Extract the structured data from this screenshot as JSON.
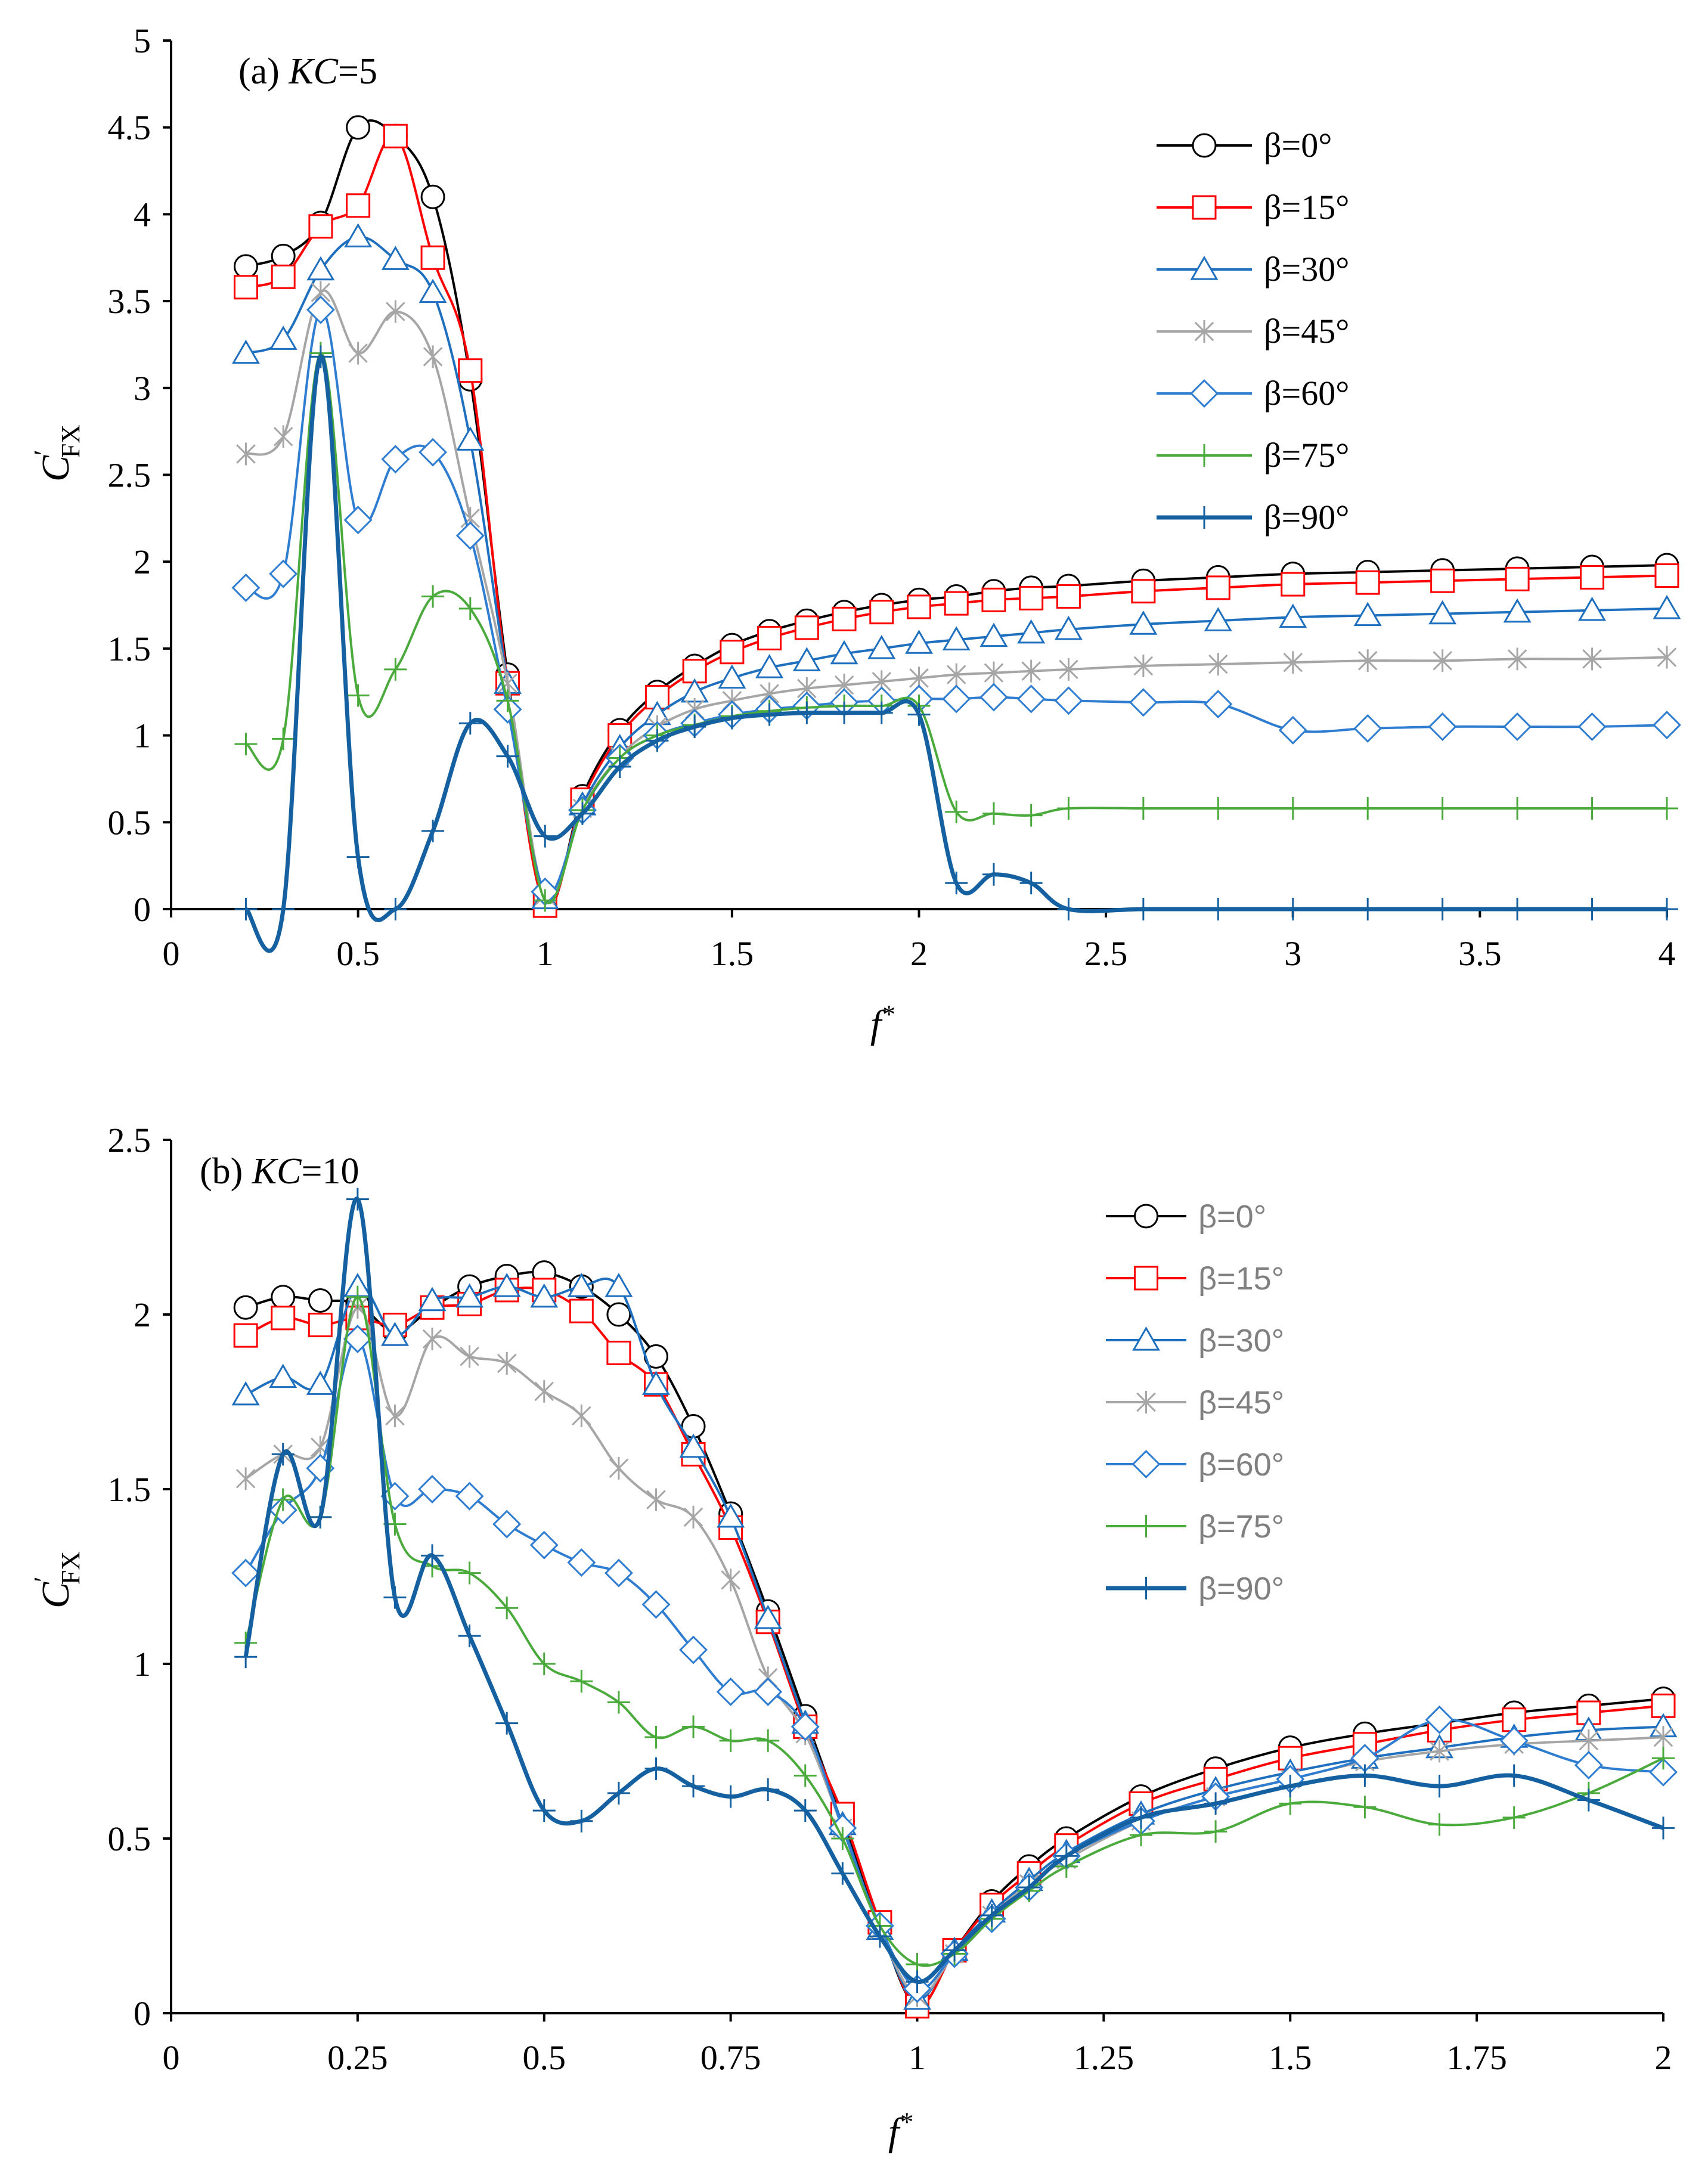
{
  "chart_data": [
    {
      "type": "line",
      "panel": "(a)",
      "title_prefix": "(a) ",
      "title_italic": "KC",
      "title_suffix": "=5",
      "xlabel": "f",
      "xlabel_sup": "*",
      "ylabel": "C",
      "ylabel_sup": "′",
      "ylabel_sub": "FX",
      "xlim": [
        0,
        4
      ],
      "ylim": [
        0,
        5
      ],
      "xticks": [
        0,
        0.5,
        1,
        1.5,
        2,
        2.5,
        3,
        3.5,
        4
      ],
      "xtick_labels": [
        "0",
        "0.5",
        "1",
        "1.5",
        "2",
        "2.5",
        "3",
        "3.5",
        "4"
      ],
      "yticks": [
        0,
        0.5,
        1,
        1.5,
        2,
        2.5,
        3,
        3.5,
        4,
        4.5,
        5
      ],
      "ytick_labels": [
        "0",
        "0.5",
        "1",
        "1.5",
        "2",
        "2.5",
        "3",
        "3.5",
        "4",
        "4.5",
        "5"
      ],
      "legend_position": "top-right",
      "series": [
        {
          "name": "β=0°",
          "color": "#000000",
          "marker": "circle",
          "lw": 4,
          "x": [
            0.2,
            0.3,
            0.4,
            0.5,
            0.6,
            0.7,
            0.8,
            0.9,
            1.0,
            1.1,
            1.2,
            1.3,
            1.4,
            1.5,
            1.6,
            1.7,
            1.8,
            1.9,
            2.0,
            2.1,
            2.2,
            2.3,
            2.4,
            2.6,
            2.8,
            3.0,
            3.2,
            3.4,
            3.6,
            3.8,
            4.0
          ],
          "y": [
            3.7,
            3.76,
            3.95,
            4.5,
            4.45,
            4.1,
            3.05,
            1.35,
            0.02,
            0.65,
            1.03,
            1.25,
            1.4,
            1.52,
            1.6,
            1.66,
            1.71,
            1.75,
            1.78,
            1.8,
            1.83,
            1.85,
            1.86,
            1.89,
            1.91,
            1.93,
            1.94,
            1.95,
            1.96,
            1.97,
            1.98
          ]
        },
        {
          "name": "β=15°",
          "color": "#ff0000",
          "marker": "square",
          "lw": 4,
          "x": [
            0.2,
            0.3,
            0.4,
            0.5,
            0.6,
            0.7,
            0.8,
            0.9,
            1.0,
            1.1,
            1.2,
            1.3,
            1.4,
            1.5,
            1.6,
            1.7,
            1.8,
            1.9,
            2.0,
            2.1,
            2.2,
            2.3,
            2.4,
            2.6,
            2.8,
            3.0,
            3.2,
            3.4,
            3.6,
            3.8,
            4.0
          ],
          "y": [
            3.58,
            3.64,
            3.93,
            4.05,
            4.45,
            3.75,
            3.1,
            1.3,
            0.02,
            0.63,
            1.0,
            1.22,
            1.37,
            1.48,
            1.56,
            1.62,
            1.67,
            1.71,
            1.74,
            1.76,
            1.78,
            1.79,
            1.8,
            1.83,
            1.85,
            1.87,
            1.88,
            1.89,
            1.9,
            1.91,
            1.92
          ]
        },
        {
          "name": "β=30°",
          "color": "#1f6fbf",
          "marker": "triangle",
          "lw": 4,
          "x": [
            0.2,
            0.3,
            0.4,
            0.5,
            0.6,
            0.7,
            0.8,
            0.9,
            1.0,
            1.1,
            1.2,
            1.3,
            1.4,
            1.5,
            1.6,
            1.7,
            1.8,
            1.9,
            2.0,
            2.1,
            2.2,
            2.3,
            2.4,
            2.6,
            2.8,
            3.0,
            3.2,
            3.4,
            3.6,
            3.8,
            4.0
          ],
          "y": [
            3.2,
            3.28,
            3.68,
            3.87,
            3.74,
            3.55,
            2.7,
            1.3,
            0.06,
            0.6,
            0.93,
            1.12,
            1.25,
            1.33,
            1.39,
            1.43,
            1.47,
            1.5,
            1.53,
            1.55,
            1.57,
            1.59,
            1.61,
            1.64,
            1.66,
            1.68,
            1.69,
            1.7,
            1.71,
            1.72,
            1.73
          ]
        },
        {
          "name": "β=45°",
          "color": "#a6a6a6",
          "marker": "asterisk",
          "lw": 4,
          "x": [
            0.2,
            0.3,
            0.4,
            0.5,
            0.6,
            0.7,
            0.8,
            0.9,
            1.0,
            1.1,
            1.2,
            1.3,
            1.4,
            1.5,
            1.6,
            1.7,
            1.8,
            1.9,
            2.0,
            2.1,
            2.2,
            2.3,
            2.4,
            2.6,
            2.8,
            3.0,
            3.2,
            3.4,
            3.6,
            3.8,
            4.0
          ],
          "y": [
            2.62,
            2.72,
            3.55,
            3.2,
            3.44,
            3.18,
            2.25,
            1.3,
            0.08,
            0.58,
            0.88,
            1.05,
            1.15,
            1.2,
            1.24,
            1.27,
            1.29,
            1.31,
            1.33,
            1.35,
            1.36,
            1.37,
            1.38,
            1.4,
            1.41,
            1.42,
            1.43,
            1.43,
            1.44,
            1.44,
            1.45
          ]
        },
        {
          "name": "β=60°",
          "color": "#2e7dd1",
          "marker": "diamond",
          "lw": 4,
          "x": [
            0.2,
            0.3,
            0.4,
            0.5,
            0.6,
            0.7,
            0.8,
            0.9,
            1.0,
            1.1,
            1.2,
            1.3,
            1.4,
            1.5,
            1.6,
            1.7,
            1.8,
            1.9,
            2.0,
            2.1,
            2.2,
            2.3,
            2.4,
            2.6,
            2.8,
            3.0,
            3.2,
            3.4,
            3.6,
            3.8,
            4.0
          ],
          "y": [
            1.85,
            1.93,
            3.45,
            2.24,
            2.59,
            2.63,
            2.15,
            1.15,
            0.1,
            0.57,
            0.87,
            1.0,
            1.07,
            1.12,
            1.15,
            1.17,
            1.19,
            1.2,
            1.21,
            1.21,
            1.22,
            1.21,
            1.2,
            1.19,
            1.18,
            1.03,
            1.04,
            1.05,
            1.05,
            1.05,
            1.06
          ]
        },
        {
          "name": "β=75°",
          "color": "#4aaa3c",
          "marker": "plus",
          "lw": 4,
          "x": [
            0.2,
            0.3,
            0.4,
            0.5,
            0.6,
            0.7,
            0.8,
            0.9,
            1.0,
            1.1,
            1.2,
            1.3,
            1.4,
            1.5,
            1.6,
            1.7,
            1.8,
            1.9,
            2.0,
            2.1,
            2.2,
            2.3,
            2.4,
            2.6,
            2.8,
            3.0,
            3.2,
            3.4,
            3.6,
            3.8,
            4.0
          ],
          "y": [
            0.95,
            0.98,
            3.2,
            1.23,
            1.38,
            1.8,
            1.73,
            1.2,
            0.05,
            0.57,
            0.87,
            1.0,
            1.06,
            1.11,
            1.14,
            1.16,
            1.17,
            1.17,
            1.17,
            0.56,
            0.55,
            0.54,
            0.58,
            0.58,
            0.58,
            0.58,
            0.58,
            0.58,
            0.58,
            0.58,
            0.58
          ]
        },
        {
          "name": "β=90°",
          "color": "#1560a0",
          "marker": "plus",
          "lw": 7,
          "x": [
            0.2,
            0.3,
            0.4,
            0.5,
            0.6,
            0.7,
            0.8,
            0.9,
            1.0,
            1.1,
            1.2,
            1.3,
            1.4,
            1.5,
            1.6,
            1.7,
            1.8,
            1.9,
            2.0,
            2.1,
            2.2,
            2.3,
            2.4,
            2.6,
            2.8,
            3.0,
            3.2,
            3.4,
            3.6,
            3.8,
            4.0
          ],
          "y": [
            0,
            0,
            3.18,
            0.3,
            0,
            0.45,
            1.07,
            0.88,
            0.42,
            0.55,
            0.82,
            0.97,
            1.05,
            1.1,
            1.12,
            1.13,
            1.13,
            1.13,
            1.12,
            0.15,
            0.2,
            0.15,
            0,
            0,
            0,
            0,
            0,
            0,
            0,
            0,
            0
          ]
        }
      ]
    },
    {
      "type": "line",
      "panel": "(b)",
      "title_prefix": "(b) ",
      "title_italic": "KC",
      "title_suffix": "=10",
      "xlabel": "f",
      "xlabel_sup": "*",
      "ylabel": "C",
      "ylabel_sup": "′",
      "ylabel_sub": "FX",
      "xlim": [
        0,
        2
      ],
      "ylim": [
        0,
        2.5
      ],
      "xticks": [
        0,
        0.25,
        0.5,
        0.75,
        1,
        1.25,
        1.5,
        1.75,
        2
      ],
      "xtick_labels": [
        "0",
        "0.25",
        "0.5",
        "0.75",
        "1",
        "1.25",
        "1.5",
        "1.75",
        "2"
      ],
      "yticks": [
        0,
        0.5,
        1,
        1.5,
        2,
        2.5
      ],
      "ytick_labels": [
        "0",
        "0.5",
        "1",
        "1.5",
        "2",
        "2.5"
      ],
      "legend_position": "top-right",
      "series": [
        {
          "name": "β=0°",
          "color": "#000000",
          "marker": "circle",
          "lw": 4,
          "x": [
            0.1,
            0.15,
            0.2,
            0.25,
            0.3,
            0.35,
            0.4,
            0.45,
            0.5,
            0.55,
            0.6,
            0.65,
            0.7,
            0.75,
            0.8,
            0.85,
            0.9,
            0.95,
            1.0,
            1.05,
            1.1,
            1.15,
            1.2,
            1.3,
            1.4,
            1.5,
            1.6,
            1.7,
            1.8,
            1.9,
            2.0
          ],
          "y": [
            2.02,
            2.05,
            2.04,
            2.03,
            1.95,
            2.02,
            2.08,
            2.11,
            2.12,
            2.08,
            2.0,
            1.88,
            1.68,
            1.43,
            1.15,
            0.85,
            0.55,
            0.25,
            0.02,
            0.18,
            0.32,
            0.42,
            0.5,
            0.62,
            0.7,
            0.76,
            0.8,
            0.83,
            0.86,
            0.88,
            0.9
          ]
        },
        {
          "name": "β=15°",
          "color": "#ff0000",
          "marker": "square",
          "lw": 4,
          "x": [
            0.1,
            0.15,
            0.2,
            0.25,
            0.3,
            0.35,
            0.4,
            0.45,
            0.5,
            0.55,
            0.6,
            0.65,
            0.7,
            0.75,
            0.8,
            0.85,
            0.9,
            0.95,
            1.0,
            1.05,
            1.1,
            1.15,
            1.2,
            1.3,
            1.4,
            1.5,
            1.6,
            1.7,
            1.8,
            1.9,
            2.0
          ],
          "y": [
            1.94,
            1.99,
            1.97,
            1.99,
            1.97,
            2.02,
            2.03,
            2.07,
            2.07,
            2.01,
            1.89,
            1.8,
            1.6,
            1.39,
            1.12,
            0.82,
            0.57,
            0.26,
            0.02,
            0.18,
            0.31,
            0.4,
            0.48,
            0.6,
            0.67,
            0.73,
            0.77,
            0.81,
            0.84,
            0.86,
            0.88
          ]
        },
        {
          "name": "β=30°",
          "color": "#1f6fbf",
          "marker": "triangle",
          "lw": 4,
          "x": [
            0.1,
            0.15,
            0.2,
            0.25,
            0.3,
            0.35,
            0.4,
            0.45,
            0.5,
            0.55,
            0.6,
            0.65,
            0.7,
            0.75,
            0.8,
            0.85,
            0.9,
            0.95,
            1.0,
            1.05,
            1.1,
            1.15,
            1.2,
            1.3,
            1.4,
            1.5,
            1.6,
            1.7,
            1.8,
            1.9,
            2.0
          ],
          "y": [
            1.77,
            1.82,
            1.8,
            2.08,
            1.94,
            2.04,
            2.05,
            2.08,
            2.05,
            2.08,
            2.08,
            1.8,
            1.62,
            1.42,
            1.13,
            0.83,
            0.54,
            0.24,
            0.04,
            0.18,
            0.29,
            0.38,
            0.46,
            0.57,
            0.64,
            0.69,
            0.73,
            0.76,
            0.79,
            0.81,
            0.82
          ]
        },
        {
          "name": "β=45°",
          "color": "#a6a6a6",
          "marker": "asterisk",
          "lw": 4,
          "x": [
            0.1,
            0.15,
            0.2,
            0.25,
            0.3,
            0.35,
            0.4,
            0.45,
            0.5,
            0.55,
            0.6,
            0.65,
            0.7,
            0.75,
            0.8,
            0.85,
            0.9,
            0.95,
            1.0,
            1.05,
            1.1,
            1.15,
            1.2,
            1.3,
            1.4,
            1.5,
            1.6,
            1.7,
            1.8,
            1.9,
            2.0
          ],
          "y": [
            1.53,
            1.6,
            1.62,
            2.02,
            1.71,
            1.93,
            1.88,
            1.86,
            1.78,
            1.71,
            1.56,
            1.47,
            1.42,
            1.24,
            0.96,
            0.8,
            0.53,
            0.24,
            0.05,
            0.17,
            0.28,
            0.37,
            0.44,
            0.55,
            0.62,
            0.67,
            0.72,
            0.75,
            0.77,
            0.78,
            0.79
          ]
        },
        {
          "name": "β=60°",
          "color": "#2e7dd1",
          "marker": "diamond",
          "lw": 4,
          "x": [
            0.1,
            0.15,
            0.2,
            0.25,
            0.3,
            0.35,
            0.4,
            0.45,
            0.5,
            0.55,
            0.6,
            0.65,
            0.7,
            0.75,
            0.8,
            0.85,
            0.9,
            0.95,
            1.0,
            1.05,
            1.1,
            1.15,
            1.2,
            1.3,
            1.4,
            1.5,
            1.6,
            1.7,
            1.8,
            1.9,
            2.0
          ],
          "y": [
            1.26,
            1.44,
            1.56,
            1.93,
            1.48,
            1.5,
            1.48,
            1.4,
            1.34,
            1.29,
            1.26,
            1.17,
            1.04,
            0.92,
            0.92,
            0.82,
            0.53,
            0.25,
            0.07,
            0.17,
            0.27,
            0.36,
            0.45,
            0.55,
            0.62,
            0.67,
            0.73,
            0.84,
            0.78,
            0.71,
            0.69
          ]
        },
        {
          "name": "β=75°",
          "color": "#4aaa3c",
          "marker": "plus",
          "lw": 4,
          "x": [
            0.1,
            0.15,
            0.2,
            0.25,
            0.3,
            0.35,
            0.4,
            0.45,
            0.5,
            0.55,
            0.6,
            0.65,
            0.7,
            0.75,
            0.8,
            0.85,
            0.9,
            0.95,
            1.0,
            1.05,
            1.1,
            1.15,
            1.2,
            1.3,
            1.4,
            1.5,
            1.6,
            1.7,
            1.8,
            1.9,
            2.0
          ],
          "y": [
            1.06,
            1.47,
            1.42,
            2.05,
            1.4,
            1.28,
            1.26,
            1.16,
            1.0,
            0.95,
            0.89,
            0.79,
            0.82,
            0.78,
            0.78,
            0.68,
            0.5,
            0.25,
            0.14,
            0.17,
            0.27,
            0.35,
            0.42,
            0.51,
            0.52,
            0.6,
            0.59,
            0.54,
            0.56,
            0.63,
            0.73
          ]
        },
        {
          "name": "β=90°",
          "color": "#1560a0",
          "marker": "plus",
          "lw": 7,
          "x": [
            0.1,
            0.15,
            0.2,
            0.25,
            0.3,
            0.35,
            0.4,
            0.45,
            0.5,
            0.55,
            0.6,
            0.65,
            0.7,
            0.75,
            0.8,
            0.85,
            0.9,
            0.95,
            1.0,
            1.05,
            1.1,
            1.15,
            1.2,
            1.3,
            1.4,
            1.5,
            1.6,
            1.7,
            1.8,
            1.9,
            2.0
          ],
          "y": [
            1.02,
            1.6,
            1.42,
            2.33,
            1.19,
            1.31,
            1.08,
            0.83,
            0.58,
            0.55,
            0.63,
            0.7,
            0.65,
            0.62,
            0.64,
            0.58,
            0.4,
            0.22,
            0.09,
            0.18,
            0.28,
            0.36,
            0.45,
            0.56,
            0.6,
            0.65,
            0.68,
            0.65,
            0.68,
            0.61,
            0.53
          ]
        }
      ]
    }
  ]
}
